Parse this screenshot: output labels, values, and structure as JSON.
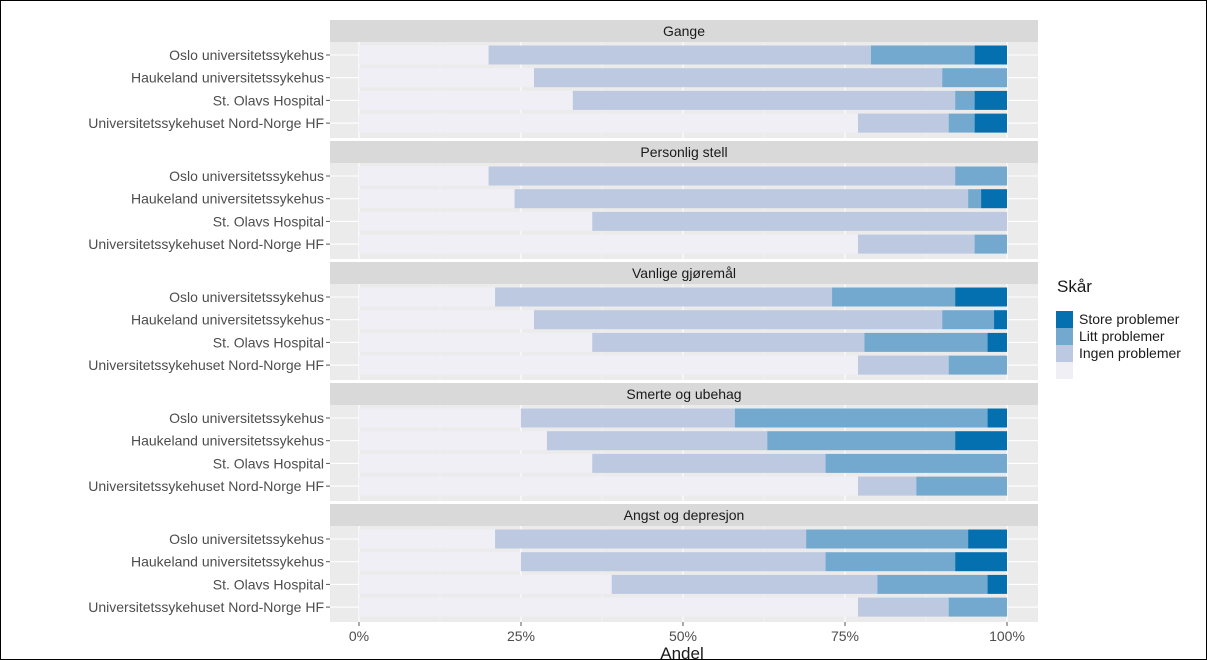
{
  "chart_data": {
    "type": "bar",
    "orientation": "horizontal",
    "stacked": true,
    "normalized": true,
    "xlabel": "Andel",
    "x_ticks": [
      "0%",
      "25%",
      "50%",
      "75%",
      "100%"
    ],
    "xlim": [
      0,
      1
    ],
    "categories": [
      "Oslo universitetssykehus",
      "Haukeland universitetssykehus",
      "St. Olavs Hospital",
      "Universitetssykehuset Nord-Norge HF"
    ],
    "legend": {
      "title": "Skår",
      "position": "right",
      "entries": [
        "Store problemer",
        "Litt problemer",
        "Ingen problemer",
        ""
      ]
    },
    "series_colors": [
      "#f0eff6",
      "#bdc9e1",
      "#74a9cf",
      "#0570b0"
    ],
    "panel_colors": {
      "panel_bg": "#ebebeb",
      "strip_bg": "#d9d9d9"
    },
    "panels": [
      {
        "title": "Gange",
        "series": [
          {
            "name": "",
            "values": [
              0.2,
              0.27,
              0.33,
              0.77
            ]
          },
          {
            "name": "Ingen problemer",
            "values": [
              0.59,
              0.63,
              0.59,
              0.14
            ]
          },
          {
            "name": "Litt problemer",
            "values": [
              0.16,
              0.1,
              0.03,
              0.04
            ]
          },
          {
            "name": "Store problemer",
            "values": [
              0.05,
              0.0,
              0.05,
              0.05
            ]
          }
        ]
      },
      {
        "title": "Personlig stell",
        "series": [
          {
            "name": "",
            "values": [
              0.2,
              0.24,
              0.36,
              0.77
            ]
          },
          {
            "name": "Ingen problemer",
            "values": [
              0.72,
              0.7,
              0.64,
              0.18
            ]
          },
          {
            "name": "Litt problemer",
            "values": [
              0.08,
              0.02,
              0.0,
              0.05
            ]
          },
          {
            "name": "Store problemer",
            "values": [
              0.0,
              0.04,
              0.0,
              0.0
            ]
          }
        ]
      },
      {
        "title": "Vanlige gjøremål",
        "series": [
          {
            "name": "",
            "values": [
              0.21,
              0.27,
              0.36,
              0.77
            ]
          },
          {
            "name": "Ingen problemer",
            "values": [
              0.52,
              0.63,
              0.42,
              0.14
            ]
          },
          {
            "name": "Litt problemer",
            "values": [
              0.19,
              0.08,
              0.19,
              0.09
            ]
          },
          {
            "name": "Store problemer",
            "values": [
              0.08,
              0.02,
              0.03,
              0.0
            ]
          }
        ]
      },
      {
        "title": "Smerte og ubehag",
        "series": [
          {
            "name": "",
            "values": [
              0.25,
              0.29,
              0.36,
              0.77
            ]
          },
          {
            "name": "Ingen problemer",
            "values": [
              0.33,
              0.34,
              0.36,
              0.09
            ]
          },
          {
            "name": "Litt problemer",
            "values": [
              0.39,
              0.29,
              0.28,
              0.14
            ]
          },
          {
            "name": "Store problemer",
            "values": [
              0.03,
              0.08,
              0.0,
              0.0
            ]
          }
        ]
      },
      {
        "title": "Angst og depresjon",
        "series": [
          {
            "name": "",
            "values": [
              0.21,
              0.25,
              0.39,
              0.77
            ]
          },
          {
            "name": "Ingen problemer",
            "values": [
              0.48,
              0.47,
              0.41,
              0.14
            ]
          },
          {
            "name": "Litt problemer",
            "values": [
              0.25,
              0.2,
              0.17,
              0.09
            ]
          },
          {
            "name": "Store problemer",
            "values": [
              0.06,
              0.08,
              0.03,
              0.0
            ]
          }
        ]
      }
    ]
  }
}
